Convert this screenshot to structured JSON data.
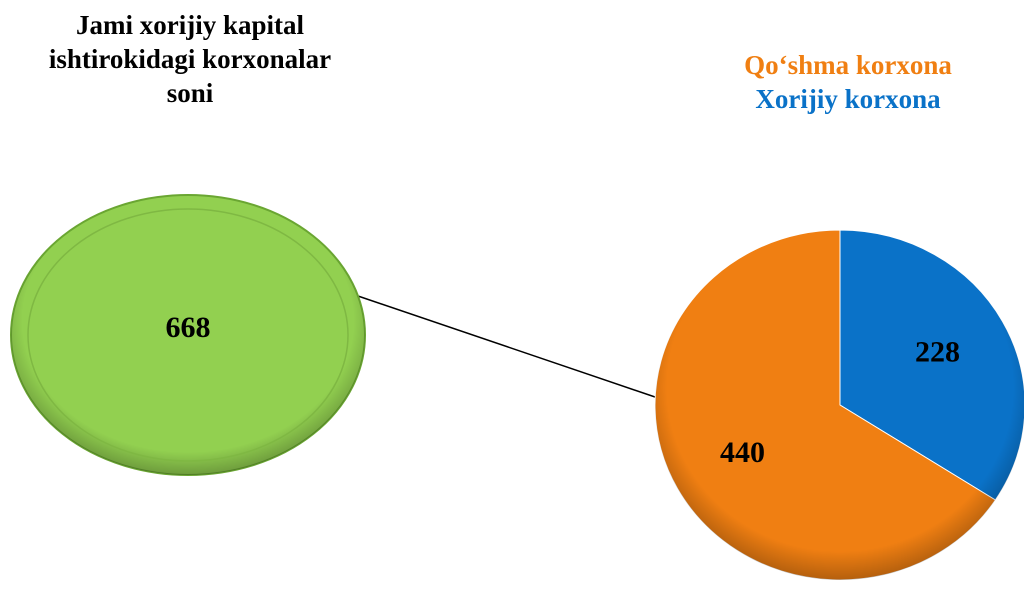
{
  "chart_data": {
    "type": "pie",
    "title": "Jami xorijiy kapital ishtirokidagi korxonalar soni",
    "total": 668,
    "total_color": "#92d050",
    "categories": [
      "Qo‘shma korxona",
      "Xorijiy korxona"
    ],
    "values": [
      440,
      228
    ],
    "colors": [
      "#f07f12",
      "#0a72c8"
    ]
  }
}
